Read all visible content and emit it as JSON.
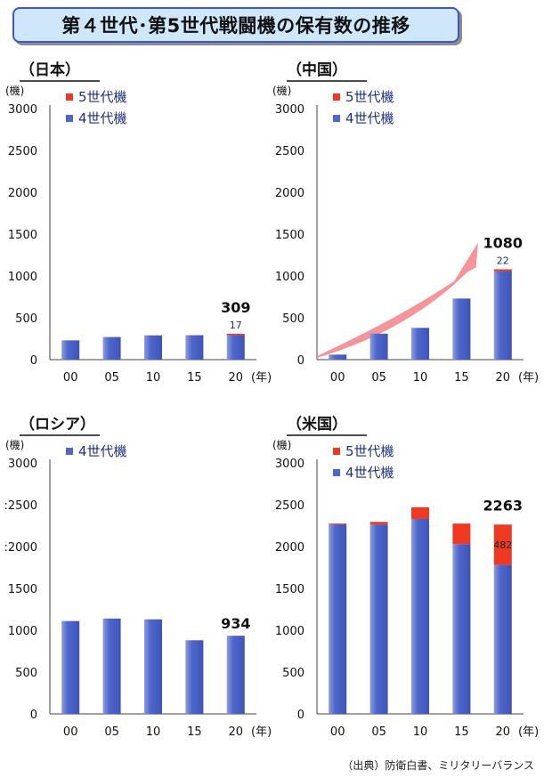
{
  "title": "第４世代･第5世代戦闘機の保有数の推移",
  "source": "（出典）防衛白書、ミリタリーバランス",
  "colors": {
    "gen4": "#4f67cb",
    "gen5": "#ee3a22",
    "arrow": "#f4888f",
    "title_bg": "#cfe7fb",
    "title_border": "#3f56c8"
  },
  "chart_data": [
    {
      "type": "bar",
      "stacked": true,
      "title": "（日本）",
      "ylabel": "(機)",
      "xunit": "(年)",
      "categories": [
        "00",
        "05",
        "10",
        "15",
        "20"
      ],
      "yticks": [
        "0",
        "500",
        "1000",
        "1500",
        "2000",
        "2500",
        "3000"
      ],
      "ylim": [
        0,
        3000
      ],
      "legend": [
        "5世代機",
        "4世代機"
      ],
      "series": [
        {
          "name": "4世代機",
          "values": [
            230,
            270,
            290,
            292,
            292
          ]
        },
        {
          "name": "5世代機",
          "values": [
            0,
            0,
            0,
            0,
            17
          ]
        }
      ],
      "total_label": "309",
      "gen5_label": "17"
    },
    {
      "type": "bar",
      "stacked": true,
      "title": "（中国）",
      "ylabel": "(機)",
      "xunit": "(年)",
      "categories": [
        "00",
        "05",
        "10",
        "15",
        "20"
      ],
      "yticks": [
        "0",
        "500",
        "1000",
        "1500",
        "2000",
        "2500",
        "3000"
      ],
      "ylim": [
        0,
        3000
      ],
      "legend": [
        "5世代機",
        "4世代機"
      ],
      "series": [
        {
          "name": "4世代機",
          "values": [
            60,
            310,
            380,
            730,
            1058
          ]
        },
        {
          "name": "5世代機",
          "values": [
            0,
            0,
            0,
            0,
            22
          ]
        }
      ],
      "total_label": "1080",
      "gen5_label": "22",
      "trend_arrow": true
    },
    {
      "type": "bar",
      "stacked": true,
      "title": "（ロシア）",
      "ylabel": "(機)",
      "xunit": "(年)",
      "categories": [
        "00",
        "05",
        "10",
        "15",
        "20"
      ],
      "yticks": [
        "0",
        "500",
        "1000",
        "1500",
        ":2000",
        ":2500",
        "3000"
      ],
      "ylim": [
        0,
        3000
      ],
      "legend": [
        "4世代機"
      ],
      "series": [
        {
          "name": "4世代機",
          "values": [
            1110,
            1140,
            1130,
            880,
            934
          ]
        }
      ],
      "total_label": "934"
    },
    {
      "type": "bar",
      "stacked": true,
      "title": "（米国）",
      "ylabel": "(機)",
      "xunit": "(年)",
      "categories": [
        "00",
        "05",
        "10",
        "15",
        "20"
      ],
      "yticks": [
        "0",
        "500",
        "1000",
        "1500",
        "2000",
        "2500",
        "3000"
      ],
      "ylim": [
        0,
        3000
      ],
      "legend": [
        "5世代機",
        "4世代機"
      ],
      "series": [
        {
          "name": "4世代機",
          "values": [
            2265,
            2265,
            2330,
            2030,
            1781
          ]
        },
        {
          "name": "5世代機",
          "values": [
            10,
            30,
            140,
            245,
            482
          ]
        }
      ],
      "total_label": "2263",
      "gen5_label": "482"
    }
  ]
}
